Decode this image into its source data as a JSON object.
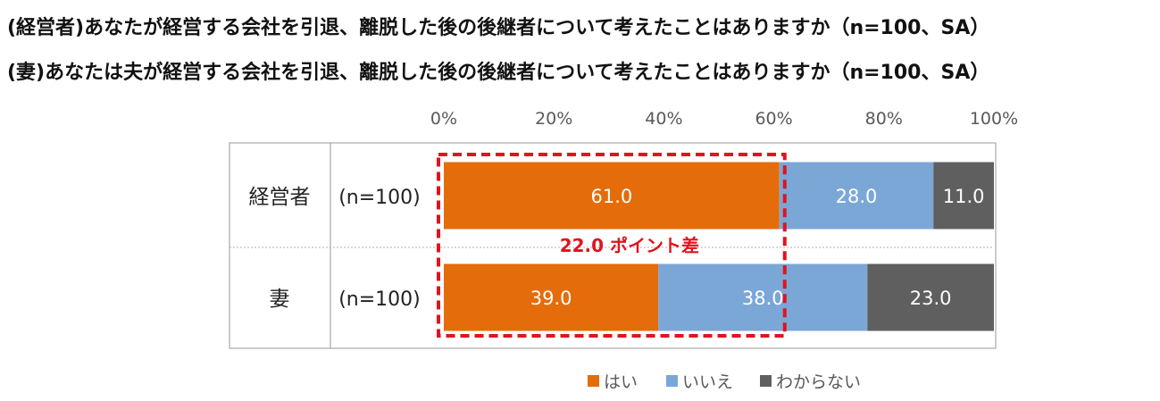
{
  "titles": [
    "(経営者)あなたが経営する会社を引退、離脱した後の後継者について考えたことはありますか（n=100、SA）",
    "(妻)あなたは夫が経営する会社を引退、離脱した後の後継者について考えたことはありますか（n=100、SA）"
  ],
  "chart_data": {
    "type": "bar",
    "orientation": "horizontal",
    "stacked": true,
    "categories": [
      "経営者",
      "妻"
    ],
    "sample_sizes": [
      "(n=100)",
      "(n=100)"
    ],
    "series": [
      {
        "name": "はい",
        "values": [
          61.0,
          39.0
        ],
        "color": "#E46C0A"
      },
      {
        "name": "いいえ",
        "values": [
          28.0,
          38.0
        ],
        "color": "#7BA7D7"
      },
      {
        "name": "わからない",
        "values": [
          11.0,
          23.0
        ],
        "color": "#5F5F5F"
      }
    ],
    "value_labels": [
      [
        "61.0",
        "28.0",
        "11.0"
      ],
      [
        "39.0",
        "38.0",
        "23.0"
      ]
    ],
    "xlim": [
      0,
      100
    ],
    "ticks": [
      "0%",
      "20%",
      "40%",
      "60%",
      "80%",
      "100%"
    ],
    "legend_position": "bottom",
    "annotation": {
      "text": "22.0 ポイント差",
      "color": "#E0141E",
      "series": "はい"
    }
  }
}
